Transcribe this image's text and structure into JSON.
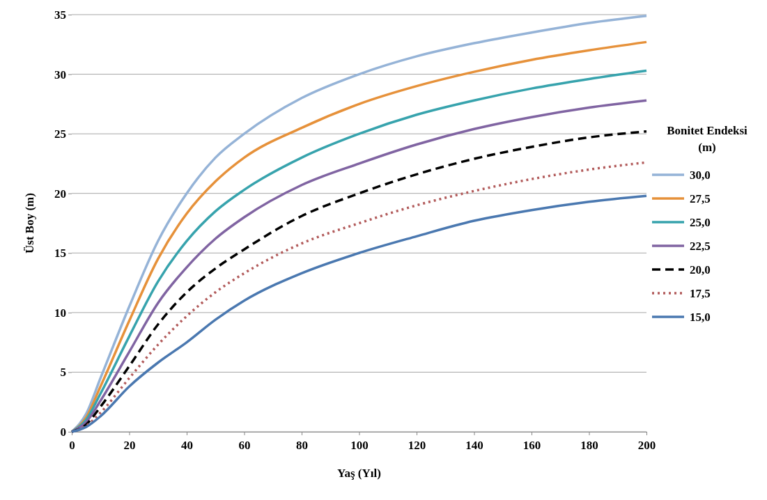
{
  "chart_data": {
    "type": "line",
    "xlabel": "Yaş (Yıl)",
    "ylabel": "Üst Boy (m)",
    "legend_title": "Bonitet Endeksi (m)",
    "legend": "right",
    "grid": "y",
    "marker": "none",
    "x": [
      0,
      5,
      10,
      20,
      30,
      40,
      50,
      60,
      80,
      100,
      120,
      140,
      160,
      180,
      200
    ],
    "xlim": [
      0,
      200
    ],
    "xticks": [
      0,
      20,
      40,
      60,
      80,
      100,
      120,
      140,
      160,
      180,
      200
    ],
    "ylim": [
      0,
      35
    ],
    "yticks": [
      0,
      5,
      10,
      15,
      20,
      25,
      30,
      35
    ],
    "series": [
      {
        "name": "30,0",
        "color": "#95b3d7",
        "line_style": "solid",
        "values": [
          0,
          1.5,
          4.5,
          10.5,
          16,
          20,
          23,
          25,
          28,
          30,
          31.5,
          32.6,
          33.5,
          34.3,
          34.9
        ]
      },
      {
        "name": "27,5",
        "color": "#e6913a",
        "line_style": "solid",
        "values": [
          0,
          1.2,
          3.8,
          9.3,
          14.5,
          18.3,
          21,
          23,
          25.5,
          27.5,
          29,
          30.2,
          31.2,
          32,
          32.7
        ]
      },
      {
        "name": "25,0",
        "color": "#37a3ad",
        "line_style": "solid",
        "values": [
          0,
          1,
          3.2,
          8,
          12.6,
          16,
          18.5,
          20.3,
          23,
          25,
          26.6,
          27.8,
          28.8,
          29.6,
          30.3
        ]
      },
      {
        "name": "22,5",
        "color": "#8064a2",
        "line_style": "solid",
        "values": [
          0,
          0.8,
          2.6,
          6.7,
          10.8,
          13.8,
          16.2,
          18,
          20.7,
          22.5,
          24.1,
          25.4,
          26.4,
          27.2,
          27.8
        ]
      },
      {
        "name": "20,0",
        "color": "#000000",
        "line_style": "dashed",
        "values": [
          0,
          0.6,
          2.1,
          5.5,
          9,
          11.7,
          13.7,
          15.3,
          18.1,
          20,
          21.6,
          22.9,
          23.9,
          24.7,
          25.2
        ]
      },
      {
        "name": "17,5",
        "color": "#b25b5b",
        "line_style": "dotted",
        "values": [
          0,
          0.5,
          1.6,
          4.5,
          7.3,
          9.7,
          11.7,
          13.3,
          15.8,
          17.5,
          19,
          20.2,
          21.2,
          22,
          22.6
        ]
      },
      {
        "name": "15,0",
        "color": "#4a78b0",
        "line_style": "solid",
        "values": [
          0,
          0.4,
          1.3,
          3.8,
          5.8,
          7.5,
          9.4,
          11,
          13.3,
          15,
          16.4,
          17.7,
          18.6,
          19.3,
          19.8
        ]
      }
    ]
  }
}
